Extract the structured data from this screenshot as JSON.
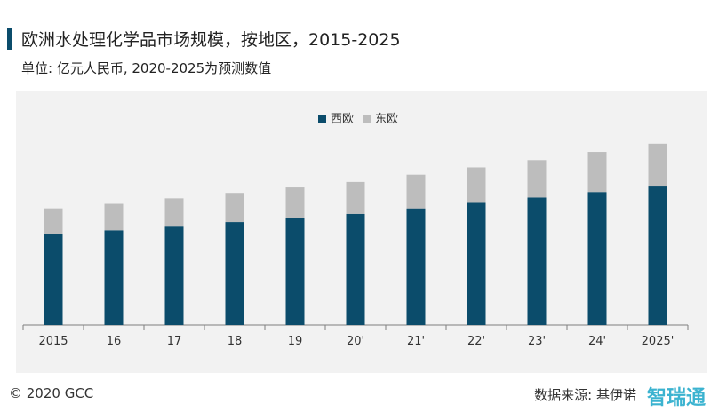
{
  "header": {
    "title": "欧洲水处理化学品市场规模，按地区，2015-2025",
    "subtitle": "单位: 亿元人民币, 2020-2025为预测数值"
  },
  "footer": {
    "copyright": "© 2020 GCC",
    "source": "数据来源: 基伊诺",
    "watermark": "智瑞通"
  },
  "colors": {
    "west": "#0b4c6b",
    "east": "#bdbdbd",
    "axis": "#7f7f7f"
  },
  "chart_data": {
    "type": "bar",
    "stacked": true,
    "categories": [
      "2015",
      "16",
      "17",
      "18",
      "19",
      "20'",
      "21'",
      "22'",
      "23'",
      "24'",
      "2025'"
    ],
    "series": [
      {
        "name": "西欧",
        "values": [
          100,
          104,
          108,
          113,
          117,
          122,
          128,
          134,
          140,
          146,
          152
        ]
      },
      {
        "name": "东欧",
        "values": [
          28,
          29,
          31,
          32,
          34,
          35,
          37,
          39,
          41,
          44,
          47
        ]
      }
    ],
    "legend_position": "top-center",
    "grid": false,
    "ylim": [
      0,
      230
    ]
  }
}
